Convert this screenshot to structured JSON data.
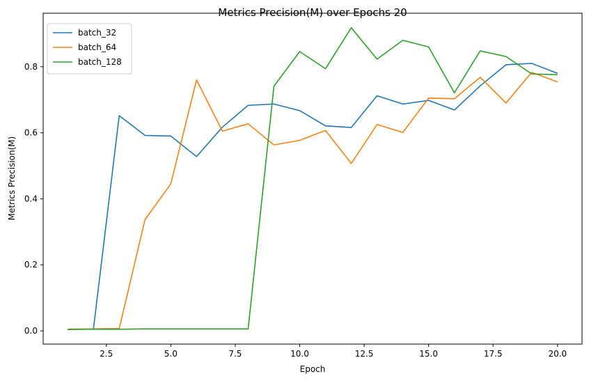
{
  "chart_data": {
    "type": "line",
    "title": "Metrics Precision(M) over Epochs 20",
    "xlabel": "Epoch",
    "ylabel": "Metrics Precision(M)",
    "xlim": [
      0.05,
      20.95
    ],
    "ylim": [
      -0.04,
      0.962
    ],
    "xticks": [
      2.5,
      5.0,
      7.5,
      10.0,
      12.5,
      15.0,
      17.5,
      20.0
    ],
    "xtick_labels": [
      "2.5",
      "5.0",
      "7.5",
      "10.0",
      "12.5",
      "15.0",
      "17.5",
      "20.0"
    ],
    "yticks": [
      0.0,
      0.2,
      0.4,
      0.6,
      0.8
    ],
    "ytick_labels": [
      "0.0",
      "0.2",
      "0.4",
      "0.6",
      "0.8"
    ],
    "grid": false,
    "legend_position": "top-left",
    "x": [
      1,
      2,
      3,
      4,
      5,
      6,
      7,
      8,
      9,
      10,
      11,
      12,
      13,
      14,
      15,
      16,
      17,
      18,
      19,
      20
    ],
    "series": [
      {
        "name": "batch_32",
        "color": "#1f77b4",
        "values": [
          0.005,
          0.006,
          0.652,
          0.592,
          0.59,
          0.528,
          0.617,
          0.683,
          0.687,
          0.667,
          0.621,
          0.616,
          0.712,
          0.687,
          0.698,
          0.669,
          0.742,
          0.806,
          0.81,
          0.78
        ]
      },
      {
        "name": "batch_64",
        "color": "#ff7f0e",
        "values": [
          0.005,
          0.006,
          0.007,
          0.337,
          0.445,
          0.76,
          0.605,
          0.627,
          0.563,
          0.577,
          0.607,
          0.507,
          0.625,
          0.601,
          0.705,
          0.703,
          0.768,
          0.69,
          0.783,
          0.754
        ]
      },
      {
        "name": "batch_128",
        "color": "#2ca02c",
        "values": [
          0.004,
          0.005,
          0.005,
          0.006,
          0.006,
          0.006,
          0.006,
          0.006,
          0.741,
          0.846,
          0.794,
          0.918,
          0.823,
          0.88,
          0.86,
          0.721,
          0.848,
          0.831,
          0.778,
          0.776
        ]
      }
    ]
  }
}
